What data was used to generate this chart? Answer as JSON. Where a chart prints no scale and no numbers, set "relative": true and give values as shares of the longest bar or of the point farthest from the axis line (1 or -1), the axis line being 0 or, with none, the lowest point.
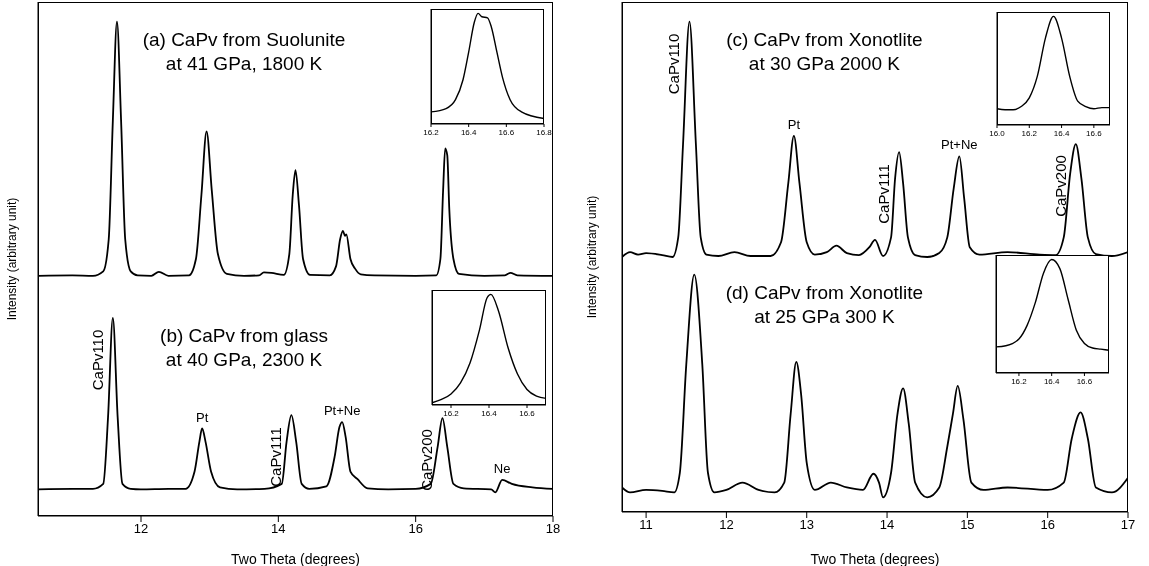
{
  "chart_data": [
    {
      "type": "line",
      "relative": true,
      "xlabel": "Two Theta (degrees)",
      "ylabel": "Intensity (arbitrary unit)",
      "xlim": [
        10.5,
        18
      ],
      "xticks": [
        12,
        14,
        16,
        18
      ],
      "marker": "none",
      "series": [
        {
          "name": "(a) CaPv from Suolunite\nat 41 GPa, 1800 K",
          "color": "#000000",
          "x": [
            10.5,
            11.0,
            11.3,
            11.45,
            11.53,
            11.59,
            11.65,
            11.71,
            11.77,
            11.85,
            11.95,
            12.15,
            12.26,
            12.4,
            12.7,
            12.8,
            12.88,
            12.955,
            13.03,
            13.12,
            13.25,
            13.5,
            13.72,
            13.79,
            13.9,
            14.08,
            14.16,
            14.21,
            14.25,
            14.3,
            14.36,
            14.46,
            14.75,
            14.84,
            14.9,
            14.94,
            14.97,
            14.99,
            15.05,
            15.12,
            15.2,
            15.4,
            16.0,
            16.3,
            16.36,
            16.4,
            16.43,
            16.46,
            16.49,
            16.55,
            16.63,
            17.0,
            17.3,
            17.38,
            17.48,
            18.0
          ],
          "values": [
            0.486,
            0.487,
            0.486,
            0.495,
            0.56,
            0.8,
            1.0,
            0.8,
            0.56,
            0.495,
            0.487,
            0.486,
            0.494,
            0.486,
            0.487,
            0.52,
            0.65,
            0.778,
            0.66,
            0.53,
            0.49,
            0.486,
            0.487,
            0.493,
            0.492,
            0.488,
            0.53,
            0.65,
            0.7,
            0.63,
            0.52,
            0.488,
            0.487,
            0.505,
            0.56,
            0.577,
            0.567,
            0.57,
            0.52,
            0.5,
            0.489,
            0.487,
            0.486,
            0.487,
            0.52,
            0.66,
            0.744,
            0.73,
            0.62,
            0.52,
            0.49,
            0.486,
            0.487,
            0.492,
            0.487,
            0.486
          ]
        },
        {
          "name": "(b) CaPv from glass\nat 40 GPa, 2300 K",
          "color": "#000000",
          "x": [
            10.5,
            11.0,
            11.3,
            11.45,
            11.52,
            11.59,
            11.66,
            11.73,
            11.85,
            12.0,
            12.4,
            12.65,
            12.78,
            12.85,
            12.89,
            12.94,
            13.02,
            13.15,
            13.4,
            13.8,
            14.05,
            14.12,
            14.19,
            14.26,
            14.34,
            14.45,
            14.7,
            14.82,
            14.89,
            14.93,
            14.98,
            15.05,
            15.15,
            15.3,
            15.6,
            16.0,
            16.22,
            16.32,
            16.39,
            16.46,
            16.55,
            16.7,
            17.1,
            17.16,
            17.26,
            17.4,
            17.7,
            18.0
          ],
          "values": [
            0.054,
            0.055,
            0.055,
            0.065,
            0.2,
            0.401,
            0.2,
            0.065,
            0.055,
            0.054,
            0.055,
            0.055,
            0.09,
            0.15,
            0.177,
            0.15,
            0.09,
            0.058,
            0.054,
            0.055,
            0.065,
            0.15,
            0.204,
            0.15,
            0.065,
            0.055,
            0.06,
            0.12,
            0.18,
            0.19,
            0.16,
            0.09,
            0.075,
            0.056,
            0.054,
            0.055,
            0.065,
            0.14,
            0.198,
            0.14,
            0.065,
            0.056,
            0.054,
            0.048,
            0.073,
            0.065,
            0.058,
            0.055
          ]
        }
      ],
      "annotations": [
        {
          "text": "CaPv110",
          "x": 11.59,
          "y": 0.401
        },
        {
          "text": "Pt",
          "x": 12.89,
          "y": 0.177
        },
        {
          "text": "CaPv111",
          "x": 14.19,
          "y": 0.204
        },
        {
          "text": "Pt+Ne",
          "x": 14.93,
          "y": 0.19
        },
        {
          "text": "CaPv200",
          "x": 16.39,
          "y": 0.198
        },
        {
          "text": "Ne",
          "x": 17.26,
          "y": 0.073
        }
      ]
    },
    {
      "type": "line",
      "relative": true,
      "xlim": [
        16.2,
        16.8
      ],
      "xticks": [
        16.2,
        16.4,
        16.6,
        16.8
      ],
      "marker": "none",
      "series": [
        {
          "color": "#000000",
          "x": [
            16.2,
            16.28,
            16.33,
            16.37,
            16.4,
            16.43,
            16.45,
            16.47,
            16.5,
            16.52,
            16.55,
            16.58,
            16.62,
            16.68,
            16.8
          ],
          "values": [
            0.11,
            0.14,
            0.22,
            0.4,
            0.65,
            0.92,
            1.0,
            0.97,
            0.96,
            0.88,
            0.65,
            0.42,
            0.22,
            0.11,
            0.05
          ]
        }
      ]
    },
    {
      "type": "line",
      "relative": true,
      "xlim": [
        16.1,
        16.7
      ],
      "xticks": [
        16.2,
        16.4,
        16.6
      ],
      "marker": "none",
      "series": [
        {
          "color": "#000000",
          "x": [
            16.1,
            16.15,
            16.2,
            16.25,
            16.3,
            16.35,
            16.39,
            16.41,
            16.45,
            16.5,
            16.55,
            16.6,
            16.65,
            16.7
          ],
          "values": [
            0.02,
            0.05,
            0.1,
            0.2,
            0.38,
            0.68,
            0.97,
            1.0,
            0.85,
            0.52,
            0.28,
            0.14,
            0.08,
            0.06
          ]
        }
      ]
    },
    {
      "type": "line",
      "relative": true,
      "xlabel": "Two Theta (degrees)",
      "ylabel": "Intensity (arbitrary unit)",
      "xlim": [
        10.7,
        17
      ],
      "xticks": [
        11,
        12,
        13,
        14,
        15,
        16,
        17
      ],
      "marker": "none",
      "series": [
        {
          "name": "(c) CaPv from Xonotlite\nat 30 GPa 2000 K",
          "color": "#000000",
          "x": [
            10.7,
            10.8,
            10.9,
            11.0,
            11.2,
            11.33,
            11.4,
            11.46,
            11.54,
            11.62,
            11.68,
            11.75,
            11.9,
            12.1,
            12.3,
            12.55,
            12.68,
            12.77,
            12.84,
            12.91,
            13.0,
            13.1,
            13.25,
            13.37,
            13.5,
            13.65,
            13.78,
            13.85,
            13.95,
            14.05,
            14.1,
            14.15,
            14.2,
            14.26,
            14.35,
            14.5,
            14.65,
            14.75,
            14.83,
            14.9,
            14.96,
            15.03,
            15.15,
            15.5,
            15.9,
            16.1,
            16.2,
            16.28,
            16.35,
            16.42,
            16.5,
            16.6,
            16.8,
            17.0
          ],
          "values": [
            0.52,
            0.53,
            0.525,
            0.528,
            0.524,
            0.52,
            0.56,
            0.75,
            1.0,
            0.75,
            0.56,
            0.525,
            0.522,
            0.53,
            0.522,
            0.522,
            0.55,
            0.67,
            0.767,
            0.67,
            0.55,
            0.525,
            0.53,
            0.543,
            0.528,
            0.524,
            0.54,
            0.555,
            0.522,
            0.56,
            0.68,
            0.734,
            0.67,
            0.56,
            0.524,
            0.52,
            0.528,
            0.56,
            0.66,
            0.725,
            0.64,
            0.54,
            0.525,
            0.53,
            0.525,
            0.524,
            0.56,
            0.69,
            0.75,
            0.68,
            0.56,
            0.526,
            0.522,
            0.53
          ]
        },
        {
          "name": "(d) CaPv from Xonotlite\nat 25 GPa 300 K",
          "color": "#000000",
          "x": [
            10.7,
            10.8,
            11.0,
            11.2,
            11.35,
            11.42,
            11.5,
            11.6,
            11.7,
            11.77,
            11.85,
            12.0,
            12.2,
            12.4,
            12.6,
            12.72,
            12.8,
            12.87,
            12.93,
            13.0,
            13.1,
            13.3,
            13.5,
            13.7,
            13.83,
            13.9,
            13.95,
            14.05,
            14.13,
            14.2,
            14.27,
            14.35,
            14.5,
            14.65,
            14.75,
            14.82,
            14.88,
            14.95,
            15.05,
            15.2,
            15.5,
            16.0,
            16.2,
            16.3,
            16.41,
            16.5,
            16.6,
            16.8,
            17.0
          ],
          "values": [
            0.05,
            0.04,
            0.045,
            0.043,
            0.04,
            0.08,
            0.3,
            0.484,
            0.3,
            0.08,
            0.04,
            0.045,
            0.06,
            0.045,
            0.04,
            0.06,
            0.2,
            0.306,
            0.24,
            0.1,
            0.045,
            0.06,
            0.05,
            0.045,
            0.078,
            0.06,
            0.03,
            0.08,
            0.2,
            0.252,
            0.18,
            0.06,
            0.03,
            0.05,
            0.133,
            0.2,
            0.257,
            0.19,
            0.06,
            0.045,
            0.05,
            0.045,
            0.06,
            0.15,
            0.203,
            0.15,
            0.05,
            0.04,
            0.07
          ]
        }
      ],
      "annotations": [
        {
          "text": "CaPv110",
          "x": 11.54,
          "y": 1.0
        },
        {
          "text": "Pt",
          "x": 12.84,
          "y": 0.767
        },
        {
          "text": "CaPv111",
          "x": 14.15,
          "y": 0.734
        },
        {
          "text": "Pt+Ne",
          "x": 14.9,
          "y": 0.725
        },
        {
          "text": "CaPv200",
          "x": 16.35,
          "y": 0.75
        }
      ]
    },
    {
      "type": "line",
      "relative": true,
      "xlim": [
        16.0,
        16.7
      ],
      "xticks": [
        {
          "value": 16.0,
          "label": "16.0"
        },
        16.2,
        16.4,
        16.6
      ],
      "marker": "none",
      "series": [
        {
          "color": "#000000",
          "x": [
            16.0,
            16.05,
            16.1,
            16.15,
            16.2,
            16.25,
            16.3,
            16.35,
            16.4,
            16.45,
            16.5,
            16.55,
            16.6,
            16.65,
            16.7
          ],
          "values": [
            0.15,
            0.14,
            0.14,
            0.17,
            0.25,
            0.45,
            0.8,
            1.0,
            0.8,
            0.45,
            0.22,
            0.17,
            0.15,
            0.16,
            0.16
          ]
        }
      ]
    },
    {
      "type": "line",
      "relative": true,
      "xlim": [
        16.06,
        16.75
      ],
      "xticks": [
        16.2,
        16.4,
        16.6
      ],
      "marker": "none",
      "series": [
        {
          "color": "#000000",
          "x": [
            16.06,
            16.12,
            16.2,
            16.25,
            16.3,
            16.35,
            16.4,
            16.45,
            16.5,
            16.55,
            16.6,
            16.65,
            16.7,
            16.75
          ],
          "values": [
            0.23,
            0.24,
            0.3,
            0.42,
            0.62,
            0.88,
            1.0,
            0.92,
            0.65,
            0.38,
            0.26,
            0.22,
            0.21,
            0.2
          ]
        }
      ]
    }
  ]
}
